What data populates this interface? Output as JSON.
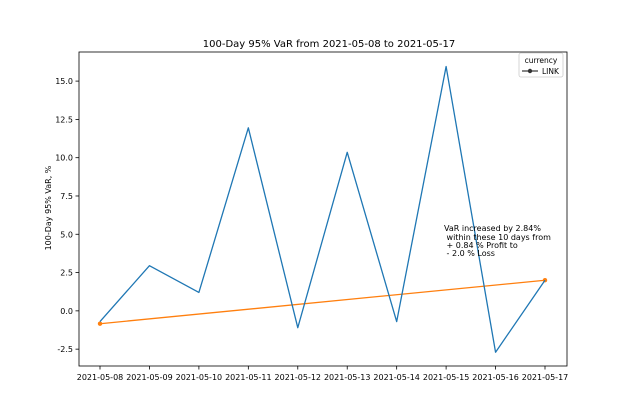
{
  "chart_data": {
    "type": "line",
    "title": "100-Day 95% VaR from 2021-05-08 to 2021-05-17",
    "xlabel": "",
    "ylabel": "100-Day 95% VaR, %",
    "categories": [
      "2021-05-08",
      "2021-05-09",
      "2021-05-10",
      "2021-05-11",
      "2021-05-12",
      "2021-05-13",
      "2021-05-14",
      "2021-05-15",
      "2021-05-16",
      "2021-05-17"
    ],
    "yticks": [
      "-2.5",
      "0.0",
      "2.5",
      "5.0",
      "7.5",
      "10.0",
      "12.5",
      "15.0"
    ],
    "ytick_values": [
      -2.5,
      0.0,
      2.5,
      5.0,
      7.5,
      10.0,
      12.5,
      15.0
    ],
    "ylim": [
      -3.6,
      16.9
    ],
    "series": [
      {
        "name": "LINK",
        "color": "#1f77b4",
        "values": [
          -0.7,
          2.95,
          1.2,
          11.95,
          -1.1,
          10.35,
          -0.7,
          15.95,
          -2.7,
          2.0
        ]
      }
    ],
    "trend": {
      "color": "#ff7f0e",
      "start": -0.84,
      "end": 2.0
    },
    "legend": {
      "title": "currency",
      "entries": [
        "LINK"
      ],
      "position": "top-right"
    },
    "annotation": {
      "lines": [
        "VaR increased by 2.84%",
        " within these 10 days from",
        " + 0.84 % Profit to",
        " - 2.0 % Loss"
      ]
    },
    "grid": false
  }
}
